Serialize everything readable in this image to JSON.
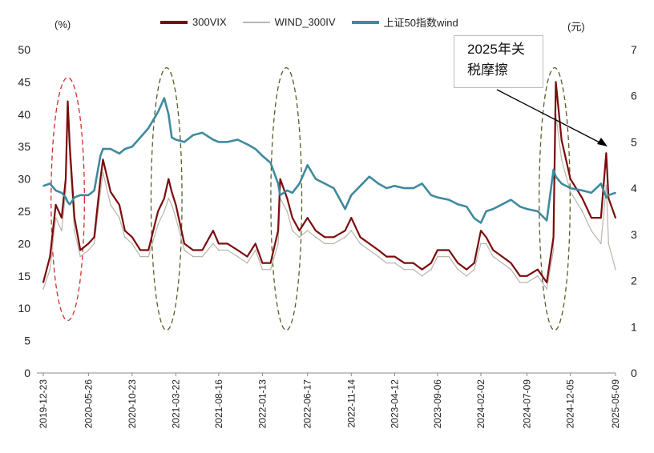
{
  "chart_data": {
    "type": "line",
    "left_axis_unit": "(%)",
    "right_axis_unit": "(元)",
    "yleft_ticks": [
      "0",
      "5",
      "10",
      "15",
      "20",
      "25",
      "30",
      "35",
      "40",
      "45",
      "50"
    ],
    "yright_ticks": [
      "0",
      "1",
      "2",
      "3",
      "4",
      "5",
      "6",
      "7"
    ],
    "ylim_left": [
      0,
      50
    ],
    "ylim_right": [
      0,
      7
    ],
    "x_tick_labels": [
      "2019-12-23",
      "2020-05-26",
      "2020-10-23",
      "2021-03-22",
      "2021-08-16",
      "2022-01-13",
      "2022-06-17",
      "2022-11-14",
      "2023-04-12",
      "2023-09-06",
      "2024-02-02",
      "2024-07-09",
      "2024-12-05",
      "2025-05-09"
    ],
    "annotation": "2025年关\n税摩擦",
    "colors": {
      "vix": "#7a0c0c",
      "iv": "#bab5ab",
      "sz50": "#3e8a9e",
      "ellipse_red": "#d62b2b",
      "ellipse_olive": "#5b5a2a"
    },
    "series": [
      {
        "name": "300VIX",
        "axis": "left",
        "x": [
          "2019-12-23",
          "2020-01-15",
          "2020-02-04",
          "2020-02-24",
          "2020-03-09",
          "2020-03-16",
          "2020-03-23",
          "2020-04-08",
          "2020-04-28",
          "2020-05-26",
          "2020-06-15",
          "2020-07-06",
          "2020-07-15",
          "2020-08-10",
          "2020-09-09",
          "2020-09-28",
          "2020-10-23",
          "2020-11-20",
          "2020-12-18",
          "2021-01-20",
          "2021-02-10",
          "2021-02-25",
          "2021-03-08",
          "2021-03-22",
          "2021-04-20",
          "2021-05-20",
          "2021-06-21",
          "2021-07-28",
          "2021-08-16",
          "2021-09-15",
          "2021-10-20",
          "2021-11-22",
          "2021-12-20",
          "2022-01-13",
          "2022-02-10",
          "2022-03-08",
          "2022-03-15",
          "2022-04-08",
          "2022-04-26",
          "2022-05-20",
          "2022-06-17",
          "2022-07-15",
          "2022-08-15",
          "2022-09-15",
          "2022-10-24",
          "2022-11-14",
          "2022-12-15",
          "2023-01-15",
          "2023-02-15",
          "2023-03-15",
          "2023-04-12",
          "2023-05-15",
          "2023-06-15",
          "2023-07-15",
          "2023-08-15",
          "2023-09-06",
          "2023-10-15",
          "2023-11-15",
          "2023-12-15",
          "2024-01-10",
          "2024-02-02",
          "2024-02-20",
          "2024-03-15",
          "2024-04-15",
          "2024-05-15",
          "2024-06-15",
          "2024-07-09",
          "2024-08-15",
          "2024-09-15",
          "2024-10-08",
          "2024-10-16",
          "2024-11-05",
          "2024-12-05",
          "2025-01-15",
          "2025-02-15",
          "2025-03-20",
          "2025-04-07",
          "2025-04-15",
          "2025-05-09"
        ],
        "values": [
          14,
          18,
          26,
          24,
          30,
          42,
          35,
          24,
          19,
          20,
          21,
          30,
          33,
          28,
          26,
          22,
          21,
          19,
          19,
          25,
          27,
          30,
          28,
          26,
          20,
          19,
          19,
          22,
          20,
          20,
          19,
          18,
          20,
          17,
          17,
          22,
          30,
          27,
          24,
          22,
          24,
          22,
          21,
          21,
          22,
          24,
          21,
          20,
          19,
          18,
          18,
          17,
          17,
          16,
          17,
          19,
          19,
          17,
          16,
          17,
          22,
          21,
          19,
          18,
          17,
          15,
          15,
          16,
          14,
          21,
          45,
          36,
          30,
          27,
          24,
          24,
          34,
          27,
          24
        ]
      },
      {
        "name": "WIND_300IV",
        "axis": "left",
        "x": [
          "2019-12-23",
          "2020-01-15",
          "2020-02-04",
          "2020-02-24",
          "2020-03-09",
          "2020-03-16",
          "2020-03-23",
          "2020-04-08",
          "2020-04-28",
          "2020-05-26",
          "2020-06-15",
          "2020-07-06",
          "2020-07-15",
          "2020-08-10",
          "2020-09-09",
          "2020-09-28",
          "2020-10-23",
          "2020-11-20",
          "2020-12-18",
          "2021-01-20",
          "2021-02-10",
          "2021-02-25",
          "2021-03-08",
          "2021-03-22",
          "2021-04-20",
          "2021-05-20",
          "2021-06-21",
          "2021-07-28",
          "2021-08-16",
          "2021-09-15",
          "2021-10-20",
          "2021-11-22",
          "2021-12-20",
          "2022-01-13",
          "2022-02-10",
          "2022-03-08",
          "2022-03-15",
          "2022-04-08",
          "2022-04-26",
          "2022-05-20",
          "2022-06-17",
          "2022-07-15",
          "2022-08-15",
          "2022-09-15",
          "2022-10-24",
          "2022-11-14",
          "2022-12-15",
          "2023-01-15",
          "2023-02-15",
          "2023-03-15",
          "2023-04-12",
          "2023-05-15",
          "2023-06-15",
          "2023-07-15",
          "2023-08-15",
          "2023-09-06",
          "2023-10-15",
          "2023-11-15",
          "2023-12-15",
          "2024-01-10",
          "2024-02-02",
          "2024-02-20",
          "2024-03-15",
          "2024-04-15",
          "2024-05-15",
          "2024-06-15",
          "2024-07-09",
          "2024-08-15",
          "2024-09-15",
          "2024-10-08",
          "2024-10-16",
          "2024-11-05",
          "2024-12-05",
          "2025-01-15",
          "2025-02-15",
          "2025-03-20",
          "2025-04-07",
          "2025-04-15",
          "2025-05-09"
        ],
        "values": [
          13,
          16,
          24,
          22,
          28,
          40,
          33,
          22,
          18,
          19,
          20,
          28,
          31,
          26,
          24,
          21,
          20,
          18,
          18,
          23,
          25,
          27,
          26,
          24,
          19,
          18,
          18,
          20,
          19,
          19,
          18,
          17,
          19,
          16,
          16,
          20,
          27,
          25,
          22,
          21,
          22,
          21,
          20,
          20,
          21,
          22,
          20,
          19,
          18,
          17,
          17,
          16,
          16,
          15,
          16,
          18,
          18,
          16,
          15,
          16,
          20,
          20,
          18,
          17,
          16,
          14,
          14,
          15,
          13,
          19,
          40,
          33,
          28,
          25,
          22,
          20,
          29,
          20,
          16
        ]
      },
      {
        "name": "上证50指数wind",
        "axis": "right",
        "x": [
          "2019-12-23",
          "2020-01-15",
          "2020-02-04",
          "2020-02-24",
          "2020-03-09",
          "2020-03-16",
          "2020-03-23",
          "2020-04-08",
          "2020-04-28",
          "2020-05-26",
          "2020-06-15",
          "2020-07-06",
          "2020-07-15",
          "2020-08-10",
          "2020-09-09",
          "2020-09-28",
          "2020-10-23",
          "2020-11-20",
          "2020-12-18",
          "2021-01-20",
          "2021-02-10",
          "2021-02-25",
          "2021-03-08",
          "2021-03-22",
          "2021-04-20",
          "2021-05-20",
          "2021-06-21",
          "2021-07-28",
          "2021-08-16",
          "2021-09-15",
          "2021-10-20",
          "2021-11-22",
          "2021-12-20",
          "2022-01-13",
          "2022-02-10",
          "2022-03-08",
          "2022-03-15",
          "2022-04-08",
          "2022-04-26",
          "2022-05-20",
          "2022-06-17",
          "2022-07-15",
          "2022-08-15",
          "2022-09-15",
          "2022-10-24",
          "2022-11-14",
          "2022-12-15",
          "2023-01-15",
          "2023-02-15",
          "2023-03-15",
          "2023-04-12",
          "2023-05-15",
          "2023-06-15",
          "2023-07-15",
          "2023-08-15",
          "2023-09-06",
          "2023-10-15",
          "2023-11-15",
          "2023-12-15",
          "2024-01-10",
          "2024-02-02",
          "2024-02-20",
          "2024-03-15",
          "2024-04-15",
          "2024-05-15",
          "2024-06-15",
          "2024-07-09",
          "2024-08-15",
          "2024-09-15",
          "2024-10-08",
          "2024-10-16",
          "2024-11-05",
          "2024-12-05",
          "2025-01-15",
          "2025-02-15",
          "2025-03-20",
          "2025-04-07",
          "2025-04-15",
          "2025-05-09"
        ],
        "values": [
          4.05,
          4.1,
          3.95,
          3.9,
          3.8,
          3.7,
          3.65,
          3.8,
          3.85,
          3.85,
          3.95,
          4.7,
          4.85,
          4.85,
          4.75,
          4.85,
          4.9,
          5.1,
          5.3,
          5.65,
          5.95,
          5.6,
          5.1,
          5.05,
          5.0,
          5.15,
          5.2,
          5.05,
          5.0,
          5.0,
          5.05,
          4.95,
          4.85,
          4.7,
          4.55,
          4.1,
          3.85,
          3.95,
          3.9,
          4.1,
          4.5,
          4.2,
          4.1,
          4.0,
          3.55,
          3.85,
          4.05,
          4.25,
          4.1,
          4.0,
          4.05,
          4.0,
          4.0,
          4.1,
          3.85,
          3.8,
          3.75,
          3.65,
          3.6,
          3.35,
          3.25,
          3.5,
          3.55,
          3.65,
          3.75,
          3.6,
          3.55,
          3.5,
          3.3,
          4.4,
          4.25,
          4.1,
          4.0,
          3.95,
          3.9,
          4.1,
          3.8,
          3.85,
          3.9
        ]
      }
    ]
  }
}
